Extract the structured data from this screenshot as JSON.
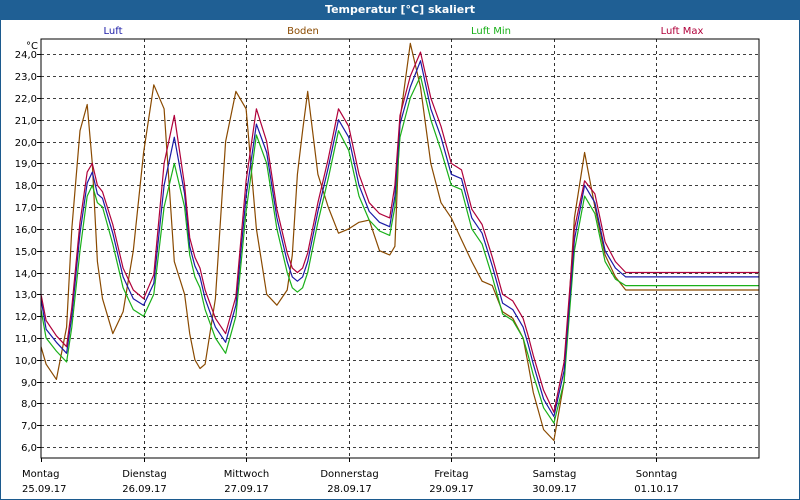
{
  "chart_data": {
    "type": "line",
    "title": "Temperatur [°C] skaliert",
    "ylabel": "°C",
    "ylim": [
      5.5,
      24.7
    ],
    "yticks": [
      "6,0",
      "7,0",
      "8,0",
      "9,0",
      "10,0",
      "11,0",
      "12,0",
      "13,0",
      "14,0",
      "15,0",
      "16,0",
      "17,0",
      "18,0",
      "19,0",
      "20,0",
      "21,0",
      "22,0",
      "23,0",
      "24,0"
    ],
    "ytick_values": [
      6,
      7,
      8,
      9,
      10,
      11,
      12,
      13,
      14,
      15,
      16,
      17,
      18,
      19,
      20,
      21,
      22,
      23,
      24
    ],
    "xlim": [
      0,
      7
    ],
    "xticks": [
      {
        "day": "Montag",
        "date": "25.09.17"
      },
      {
        "day": "Dienstag",
        "date": "26.09.17"
      },
      {
        "day": "Mittwoch",
        "date": "27.09.17"
      },
      {
        "day": "Donnerstag",
        "date": "28.09.17"
      },
      {
        "day": "Freitag",
        "date": "29.09.17"
      },
      {
        "day": "Samstag",
        "date": "30.09.17"
      },
      {
        "day": "Sonntag",
        "date": "01.10.17"
      }
    ],
    "grid": true,
    "colors": {
      "Luft": "#1a1aa6",
      "Boden": "#8a4a00",
      "Luft Min": "#19b019",
      "Luft Max": "#b0003a"
    },
    "series": [
      {
        "name": "Luft",
        "x": [
          0,
          0.05,
          0.15,
          0.25,
          0.3,
          0.38,
          0.45,
          0.5,
          0.55,
          0.6,
          0.7,
          0.8,
          0.9,
          1.0,
          1.1,
          1.2,
          1.3,
          1.4,
          1.45,
          1.5,
          1.55,
          1.6,
          1.7,
          1.8,
          1.9,
          2.0,
          2.1,
          2.2,
          2.3,
          2.4,
          2.45,
          2.5,
          2.55,
          2.6,
          2.7,
          2.8,
          2.9,
          3.0,
          3.1,
          3.2,
          3.3,
          3.4,
          3.45,
          3.5,
          3.6,
          3.7,
          3.8,
          3.9,
          4.0,
          4.1,
          4.2,
          4.3,
          4.4,
          4.5,
          4.6,
          4.7,
          4.75,
          4.8,
          4.9,
          5.0,
          5.1,
          5.2,
          5.3,
          5.4,
          5.5,
          5.6,
          5.7,
          5.8,
          5.9,
          6.0,
          6.1,
          6.2,
          6.3,
          6.4,
          6.45,
          6.5,
          6.55,
          6.6,
          6.7,
          6.8,
          6.9,
          7.0
        ],
        "y": [
          12.8,
          11.4,
          10.8,
          10.3,
          12.0,
          15.8,
          18.1,
          18.6,
          17.6,
          17.4,
          15.8,
          13.8,
          12.8,
          12.5,
          13.5,
          18.0,
          20.2,
          17.6,
          15.2,
          14.3,
          13.8,
          12.8,
          11.5,
          10.8,
          12.5,
          17.5,
          20.8,
          19.5,
          16.5,
          14.5,
          13.8,
          13.6,
          13.8,
          14.5,
          16.8,
          18.8,
          21.0,
          20.2,
          18.0,
          16.8,
          16.3,
          16.1,
          17.5,
          20.8,
          22.5,
          23.7,
          21.5,
          20.2,
          18.5,
          18.3,
          16.5,
          15.8,
          14.3,
          12.6,
          12.3,
          11.5,
          10.7,
          9.8,
          8.2,
          7.4,
          9.5,
          15.5,
          18.0,
          17.2,
          15.0,
          14.2,
          13.8,
          13.8,
          13.8,
          13.8,
          13.8,
          13.8,
          13.8,
          13.8,
          13.8,
          13.8,
          13.8,
          13.8,
          13.8,
          13.8,
          13.8,
          13.8
        ]
      },
      {
        "name": "Boden",
        "x": [
          0,
          0.05,
          0.15,
          0.25,
          0.3,
          0.38,
          0.45,
          0.5,
          0.55,
          0.6,
          0.7,
          0.8,
          0.9,
          1.0,
          1.1,
          1.2,
          1.3,
          1.4,
          1.45,
          1.5,
          1.55,
          1.6,
          1.7,
          1.8,
          1.9,
          2.0,
          2.1,
          2.2,
          2.3,
          2.4,
          2.45,
          2.5,
          2.55,
          2.6,
          2.7,
          2.8,
          2.9,
          3.0,
          3.1,
          3.2,
          3.3,
          3.4,
          3.45,
          3.5,
          3.6,
          3.7,
          3.8,
          3.9,
          4.0,
          4.1,
          4.2,
          4.3,
          4.4,
          4.5,
          4.6,
          4.7,
          4.75,
          4.8,
          4.9,
          5.0,
          5.1,
          5.2,
          5.3,
          5.4,
          5.5,
          5.6,
          5.7,
          5.8,
          5.9,
          6.0,
          6.1,
          6.2,
          6.3,
          6.4,
          6.45,
          6.5,
          6.55,
          6.6,
          6.7,
          6.8,
          6.9,
          7.0
        ],
        "y": [
          10.6,
          9.8,
          9.1,
          11.5,
          16.0,
          20.5,
          21.7,
          19.0,
          14.5,
          12.8,
          11.2,
          12.2,
          15.0,
          19.5,
          22.6,
          21.5,
          14.5,
          13.0,
          11.2,
          10.0,
          9.6,
          9.8,
          12.8,
          20.0,
          22.3,
          21.5,
          16.0,
          13.0,
          12.5,
          13.2,
          14.8,
          18.5,
          20.5,
          22.3,
          18.5,
          17.0,
          15.8,
          16.0,
          16.3,
          16.4,
          15.0,
          14.8,
          15.2,
          21.0,
          24.5,
          22.5,
          19.0,
          17.2,
          16.5,
          15.5,
          14.5,
          13.6,
          13.4,
          12.2,
          11.9,
          11.0,
          9.8,
          8.5,
          6.8,
          6.3,
          9.0,
          16.5,
          19.5,
          17.0,
          14.8,
          13.8,
          13.2,
          13.2,
          13.2,
          13.2,
          13.2,
          13.2,
          13.2,
          13.2,
          13.2,
          13.2,
          13.2,
          13.2,
          13.2,
          13.2,
          13.2,
          13.2
        ]
      },
      {
        "name": "Luft Min",
        "x": [
          0,
          0.05,
          0.15,
          0.25,
          0.3,
          0.38,
          0.45,
          0.5,
          0.55,
          0.6,
          0.7,
          0.8,
          0.9,
          1.0,
          1.1,
          1.2,
          1.3,
          1.4,
          1.45,
          1.5,
          1.55,
          1.6,
          1.7,
          1.8,
          1.9,
          2.0,
          2.1,
          2.2,
          2.3,
          2.4,
          2.45,
          2.5,
          2.55,
          2.6,
          2.7,
          2.8,
          2.9,
          3.0,
          3.1,
          3.2,
          3.3,
          3.4,
          3.45,
          3.5,
          3.6,
          3.7,
          3.8,
          3.9,
          4.0,
          4.1,
          4.2,
          4.3,
          4.4,
          4.5,
          4.6,
          4.7,
          4.75,
          4.8,
          4.9,
          5.0,
          5.1,
          5.2,
          5.3,
          5.4,
          5.5,
          5.6,
          5.7,
          5.8,
          5.9,
          6.0,
          6.1,
          6.2,
          6.3,
          6.4,
          6.45,
          6.5,
          6.55,
          6.6,
          6.7,
          6.8,
          6.9,
          7.0
        ],
        "y": [
          12.3,
          11.0,
          10.4,
          9.9,
          11.5,
          15.0,
          17.5,
          18.0,
          17.2,
          17.0,
          15.3,
          13.3,
          12.3,
          12.0,
          13.0,
          17.0,
          19.0,
          17.0,
          14.8,
          13.8,
          13.3,
          12.3,
          11.0,
          10.3,
          12.0,
          16.8,
          20.3,
          19.0,
          16.0,
          14.0,
          13.3,
          13.1,
          13.3,
          14.0,
          16.3,
          18.3,
          20.5,
          19.6,
          17.5,
          16.4,
          15.9,
          15.7,
          17.0,
          20.2,
          22.0,
          23.0,
          21.0,
          19.6,
          18.0,
          17.8,
          16.0,
          15.3,
          13.8,
          12.1,
          11.8,
          11.0,
          10.2,
          9.3,
          7.8,
          7.1,
          9.0,
          15.0,
          17.5,
          16.7,
          14.5,
          13.7,
          13.4,
          13.4,
          13.4,
          13.4,
          13.4,
          13.4,
          13.4,
          13.4,
          13.4,
          13.4,
          13.4,
          13.4,
          13.4,
          13.4,
          13.4,
          13.4
        ]
      },
      {
        "name": "Luft Max",
        "x": [
          0,
          0.05,
          0.15,
          0.25,
          0.3,
          0.38,
          0.45,
          0.5,
          0.55,
          0.6,
          0.7,
          0.8,
          0.9,
          1.0,
          1.1,
          1.2,
          1.3,
          1.4,
          1.45,
          1.5,
          1.55,
          1.6,
          1.7,
          1.8,
          1.9,
          2.0,
          2.1,
          2.2,
          2.3,
          2.4,
          2.45,
          2.5,
          2.55,
          2.6,
          2.7,
          2.8,
          2.9,
          3.0,
          3.1,
          3.2,
          3.3,
          3.4,
          3.45,
          3.5,
          3.6,
          3.7,
          3.8,
          3.9,
          4.0,
          4.1,
          4.2,
          4.3,
          4.4,
          4.5,
          4.6,
          4.7,
          4.75,
          4.8,
          4.9,
          5.0,
          5.1,
          5.2,
          5.3,
          5.4,
          5.5,
          5.6,
          5.7,
          5.8,
          5.9,
          6.0,
          6.1,
          6.2,
          6.3,
          6.4,
          6.45,
          6.5,
          6.55,
          6.6,
          6.7,
          6.8,
          6.9,
          7.0
        ],
        "y": [
          13.0,
          11.8,
          11.1,
          10.6,
          12.4,
          16.3,
          18.6,
          19.0,
          18.0,
          17.7,
          16.2,
          14.2,
          13.2,
          12.8,
          13.9,
          19.0,
          21.2,
          18.0,
          15.6,
          14.7,
          14.2,
          13.2,
          11.9,
          11.2,
          12.9,
          18.2,
          21.5,
          20.0,
          16.9,
          14.9,
          14.2,
          14.0,
          14.2,
          14.9,
          17.2,
          19.2,
          21.5,
          20.7,
          18.5,
          17.2,
          16.7,
          16.5,
          18.0,
          21.2,
          23.0,
          24.1,
          22.0,
          20.7,
          19.0,
          18.7,
          16.9,
          16.2,
          14.7,
          13.0,
          12.7,
          11.9,
          11.1,
          10.2,
          8.6,
          7.6,
          9.9,
          16.0,
          18.2,
          17.6,
          15.4,
          14.5,
          14.0,
          14.0,
          14.0,
          14.0,
          14.0,
          14.0,
          14.0,
          14.0,
          14.0,
          14.0,
          14.0,
          14.0,
          14.0,
          14.0,
          14.0,
          14.0
        ]
      }
    ]
  }
}
